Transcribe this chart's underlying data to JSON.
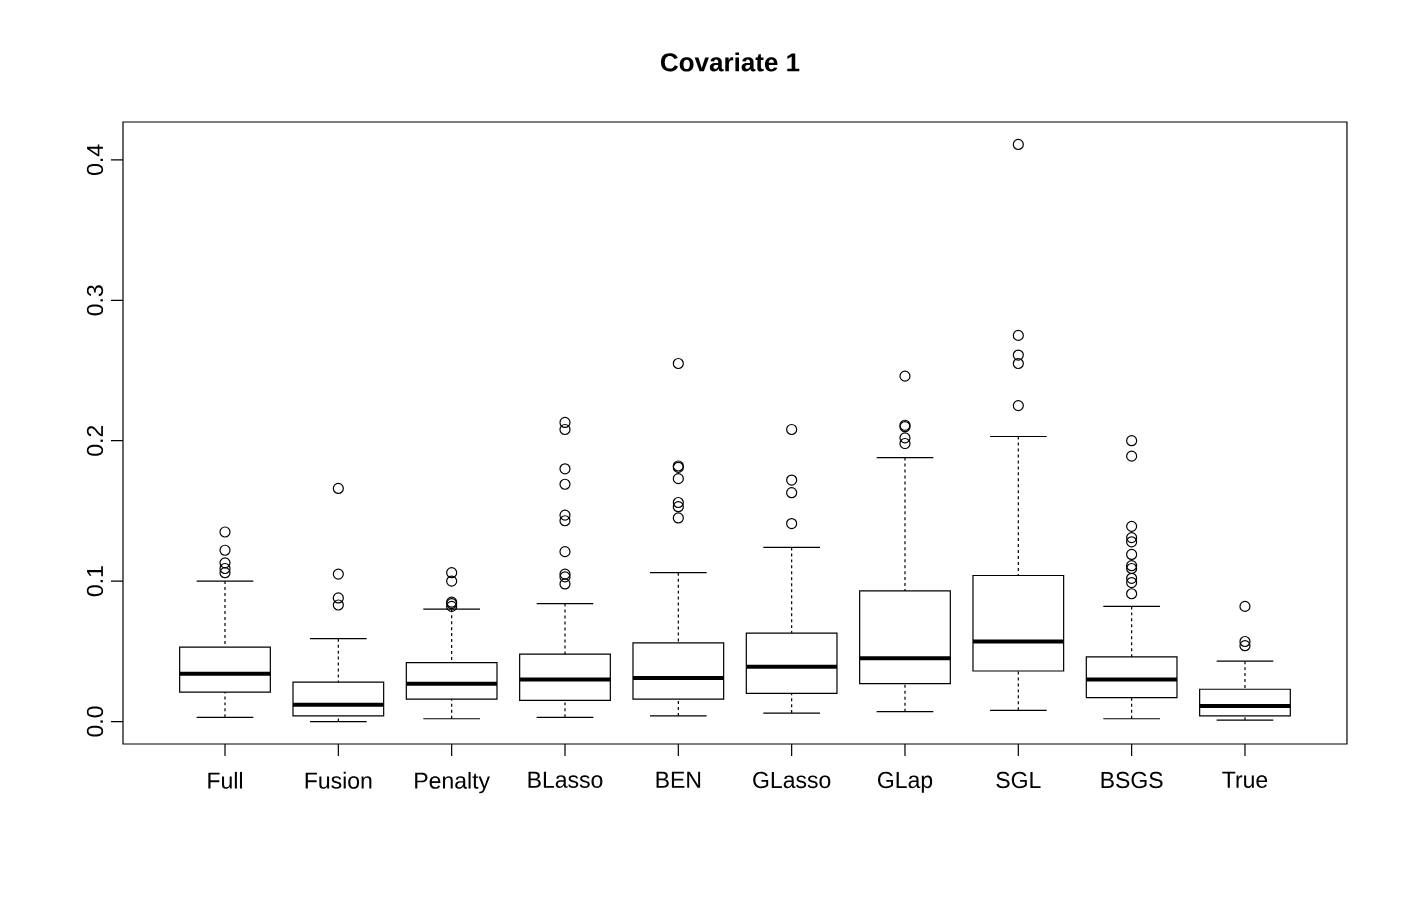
{
  "chart_data": {
    "type": "box",
    "title": "Covariate  1",
    "categories": [
      "Full",
      "Fusion",
      "Penalty",
      "BLasso",
      "BEN",
      "GLasso",
      "GLap",
      "SGL",
      "BSGS",
      "True"
    ],
    "boxes": [
      {
        "low": 0.003,
        "q1": 0.021,
        "median": 0.034,
        "q3": 0.053,
        "high": 0.1,
        "outliers": [
          0.135,
          0.122,
          0.113,
          0.109,
          0.106
        ]
      },
      {
        "low": 0.0,
        "q1": 0.004,
        "median": 0.012,
        "q3": 0.028,
        "high": 0.059,
        "outliers": [
          0.166,
          0.105,
          0.088,
          0.083
        ]
      },
      {
        "low": 0.002,
        "q1": 0.016,
        "median": 0.027,
        "q3": 0.042,
        "high": 0.08,
        "outliers": [
          0.106,
          0.1,
          0.085,
          0.084,
          0.082
        ]
      },
      {
        "low": 0.003,
        "q1": 0.015,
        "median": 0.03,
        "q3": 0.048,
        "high": 0.084,
        "outliers": [
          0.213,
          0.208,
          0.18,
          0.169,
          0.147,
          0.143,
          0.121,
          0.105,
          0.103,
          0.098
        ]
      },
      {
        "low": 0.004,
        "q1": 0.016,
        "median": 0.031,
        "q3": 0.056,
        "high": 0.106,
        "outliers": [
          0.255,
          0.182,
          0.181,
          0.173,
          0.156,
          0.153,
          0.145
        ]
      },
      {
        "low": 0.006,
        "q1": 0.02,
        "median": 0.039,
        "q3": 0.063,
        "high": 0.124,
        "outliers": [
          0.208,
          0.172,
          0.163,
          0.141
        ]
      },
      {
        "low": 0.007,
        "q1": 0.027,
        "median": 0.045,
        "q3": 0.093,
        "high": 0.188,
        "outliers": [
          0.246,
          0.211,
          0.21,
          0.202,
          0.198
        ]
      },
      {
        "low": 0.008,
        "q1": 0.036,
        "median": 0.057,
        "q3": 0.104,
        "high": 0.203,
        "outliers": [
          0.411,
          0.275,
          0.261,
          0.255,
          0.225
        ]
      },
      {
        "low": 0.002,
        "q1": 0.017,
        "median": 0.03,
        "q3": 0.046,
        "high": 0.082,
        "outliers": [
          0.2,
          0.189,
          0.139,
          0.131,
          0.128,
          0.119,
          0.111,
          0.109,
          0.102,
          0.099,
          0.091
        ]
      },
      {
        "low": 0.001,
        "q1": 0.004,
        "median": 0.011,
        "q3": 0.023,
        "high": 0.043,
        "outliers": [
          0.082,
          0.057,
          0.054
        ]
      }
    ],
    "ylim": [
      -0.016,
      0.427
    ],
    "yticks": [
      {
        "value": 0,
        "label": "0.0"
      },
      0.1,
      0.2,
      0.3,
      0.4
    ],
    "marker": "circle"
  }
}
